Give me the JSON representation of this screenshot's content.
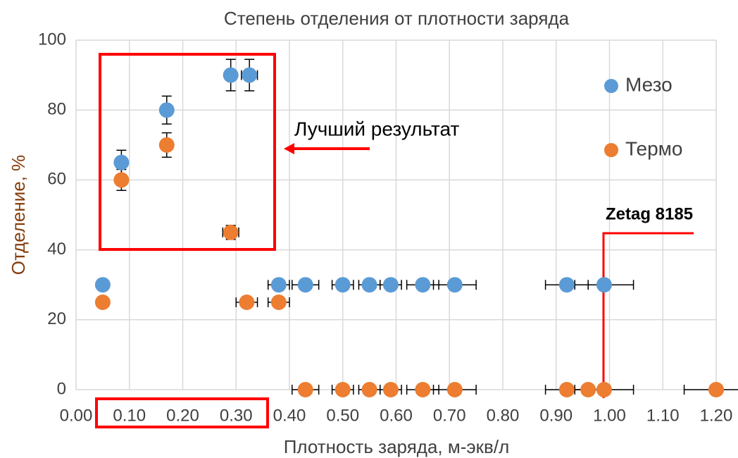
{
  "chart_data": {
    "type": "scatter",
    "title": "Степень отделения от плотности заряда",
    "xlabel": "Плотность заряда, м-экв/л",
    "ylabel": "Отделение, %",
    "annotations": [
      "Лучший результат",
      "Zetag 8185"
    ],
    "xlim": [
      0,
      1.2
    ],
    "xticks": [
      {
        "value": 0,
        "label": "0.00"
      },
      {
        "value": 0.1,
        "label": "0.10"
      },
      {
        "value": 0.2,
        "label": "0.20"
      },
      {
        "value": 0.3,
        "label": "0.30"
      },
      {
        "value": 0.4,
        "label": "0.40"
      },
      {
        "value": 0.5,
        "label": "0.50"
      },
      {
        "value": 0.6,
        "label": "0.60"
      },
      {
        "value": 0.7,
        "label": "0.70"
      },
      {
        "value": 0.8,
        "label": "0.80"
      },
      {
        "value": 0.9,
        "label": "0.90"
      },
      {
        "value": 1.0,
        "label": "1.00"
      },
      {
        "value": 1.1,
        "label": "1.10"
      },
      {
        "value": 1.2,
        "label": "1.20"
      }
    ],
    "ylim": [
      0,
      100
    ],
    "yticks": [
      0,
      20,
      40,
      60,
      80,
      100
    ],
    "grid": true,
    "legend": "right",
    "series": [
      {
        "name": "Мезо",
        "color": "#5b9bd5",
        "x": [
          0.05,
          0.085,
          0.17,
          0.29,
          0.325,
          0.38,
          0.43,
          0.5,
          0.55,
          0.59,
          0.65,
          0.71,
          0.92,
          0.99
        ],
        "values": [
          30,
          65,
          80,
          90,
          90,
          30,
          30,
          30,
          30,
          30,
          30,
          30,
          30,
          30
        ],
        "yerr": [
          null,
          3.5,
          4,
          4.5,
          4.5,
          null,
          null,
          null,
          null,
          null,
          null,
          null,
          null,
          null
        ],
        "xerr": [
          null,
          null,
          null,
          null,
          0.015,
          0.02,
          0.025,
          0.02,
          0.02,
          0.02,
          0.03,
          0.04,
          0.04,
          0.055
        ]
      },
      {
        "name": "Термо",
        "color": "#ed7d31",
        "x": [
          0.05,
          0.085,
          0.17,
          0.29,
          0.32,
          0.38,
          0.43,
          0.5,
          0.55,
          0.59,
          0.65,
          0.71,
          0.92,
          0.96,
          0.99,
          1.2
        ],
        "values": [
          25,
          60,
          70,
          45,
          25,
          25,
          0,
          0,
          0,
          0,
          0,
          0,
          0,
          0,
          0,
          0
        ],
        "yerr": [
          null,
          3,
          3.5,
          2,
          null,
          null,
          null,
          null,
          null,
          null,
          null,
          null,
          null,
          null,
          null,
          null
        ],
        "xerr": [
          null,
          null,
          null,
          0.015,
          0.02,
          0.02,
          0.025,
          0.02,
          0.02,
          0.02,
          0.03,
          0.04,
          0.04,
          null,
          0.055,
          0.06
        ]
      }
    ]
  }
}
